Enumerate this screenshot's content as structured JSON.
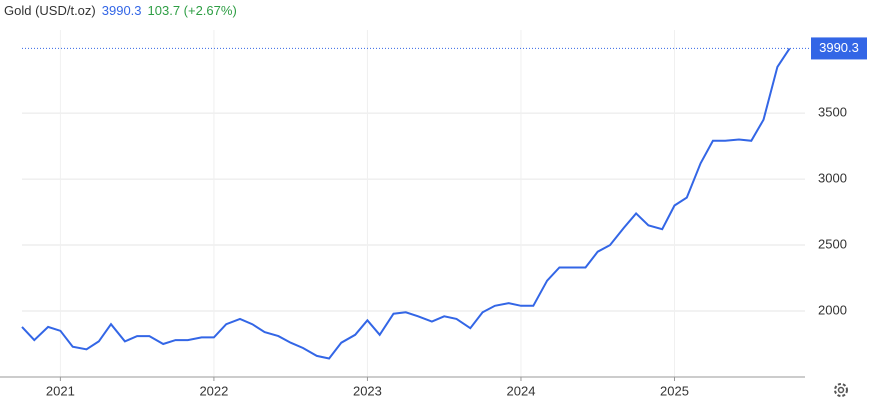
{
  "chart_data": {
    "type": "line",
    "title": "Gold (USD/t.oz)",
    "change": "103.7 (+2.67%)",
    "x": [
      2020.75,
      2020.83,
      2020.92,
      2021.0,
      2021.08,
      2021.17,
      2021.25,
      2021.33,
      2021.42,
      2021.5,
      2021.58,
      2021.67,
      2021.75,
      2021.83,
      2021.92,
      2022.0,
      2022.08,
      2022.17,
      2022.25,
      2022.33,
      2022.42,
      2022.5,
      2022.58,
      2022.67,
      2022.75,
      2022.83,
      2022.92,
      2023.0,
      2023.08,
      2023.17,
      2023.25,
      2023.33,
      2023.42,
      2023.5,
      2023.58,
      2023.67,
      2023.75,
      2023.83,
      2023.92,
      2024.0,
      2024.08,
      2024.17,
      2024.25,
      2024.33,
      2024.42,
      2024.5,
      2024.58,
      2024.67,
      2024.75,
      2024.83,
      2024.92,
      2025.0,
      2025.08,
      2025.17,
      2025.25,
      2025.33,
      2025.42,
      2025.5,
      2025.58,
      2025.67,
      2025.75
    ],
    "values": [
      1880,
      1780,
      1880,
      1850,
      1730,
      1710,
      1770,
      1900,
      1770,
      1810,
      1810,
      1750,
      1780,
      1780,
      1800,
      1800,
      1900,
      1940,
      1900,
      1840,
      1810,
      1760,
      1720,
      1660,
      1640,
      1760,
      1820,
      1930,
      1820,
      1980,
      1990,
      1960,
      1920,
      1960,
      1940,
      1870,
      1990,
      2040,
      2060,
      2040,
      2040,
      2230,
      2330,
      2330,
      2330,
      2450,
      2500,
      2630,
      2740,
      2650,
      2620,
      2800,
      2860,
      3120,
      3290,
      3290,
      3300,
      3290,
      3450,
      3850,
      3990.3
    ],
    "color": "#3366e6",
    "xlim": [
      2020.75,
      2025.85
    ],
    "xticks": [
      2021,
      2022,
      2023,
      2024,
      2025
    ],
    "ylim": [
      1500,
      4130
    ],
    "yticks": [
      2000,
      2500,
      3000,
      3500
    ],
    "grid": true
  }
}
